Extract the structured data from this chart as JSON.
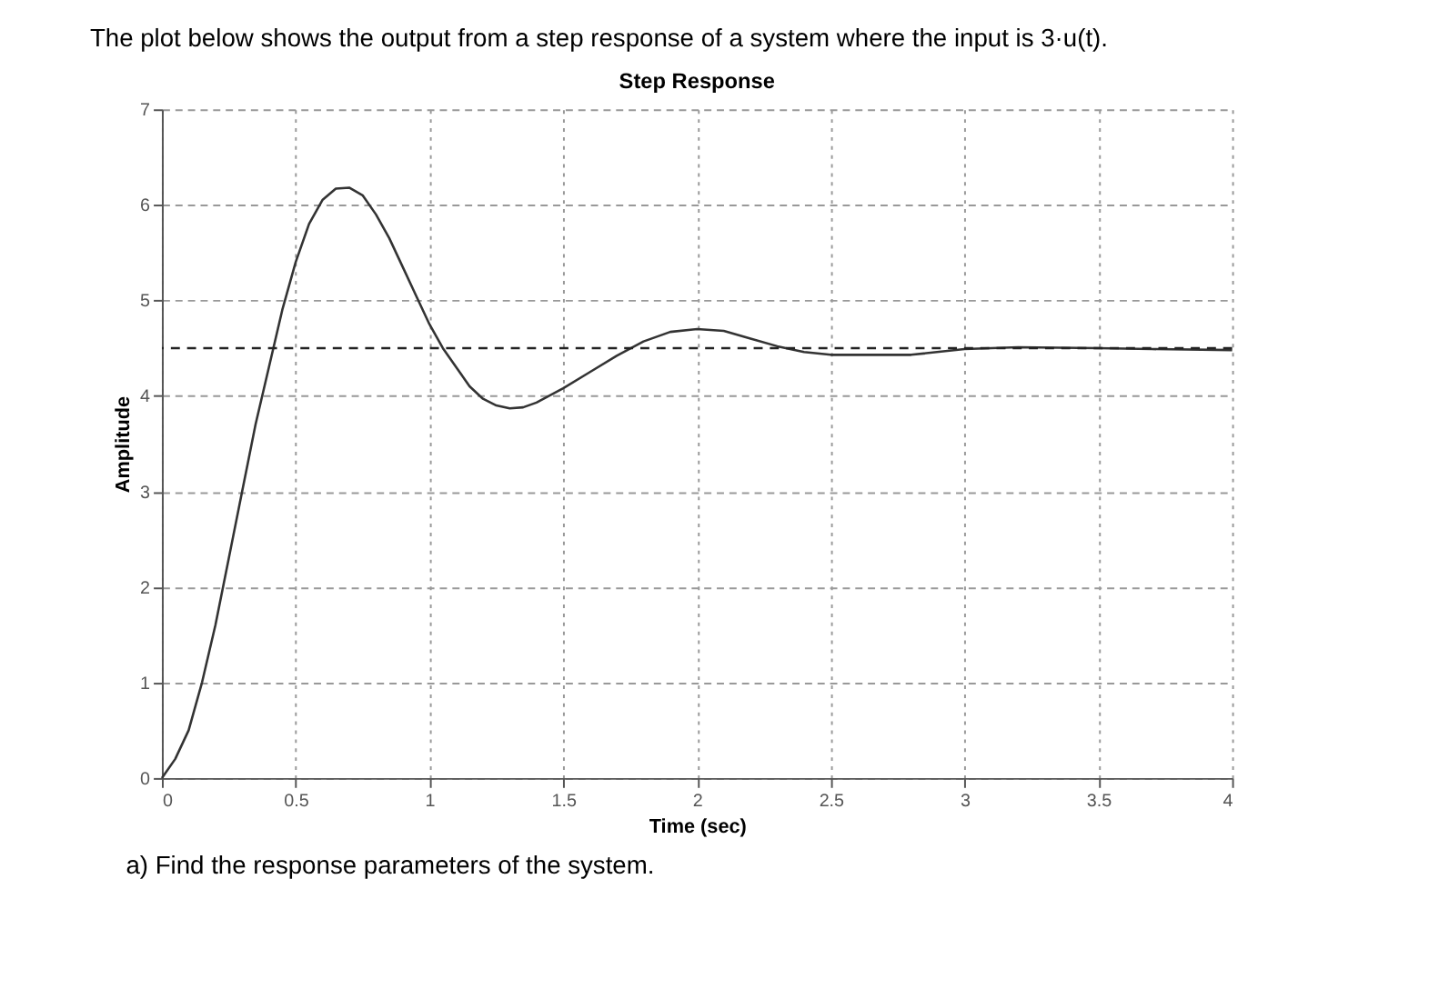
{
  "chart_data": {
    "type": "line",
    "title": "Step Response",
    "xlabel": "Time (sec)",
    "ylabel": "Amplitude",
    "annotations": [
      "The plot below shows the output from a step response of a system where the input is 3·u(t).",
      "a)  Find the response parameters of the system."
    ],
    "x": [
      0,
      0.05,
      0.1,
      0.15,
      0.2,
      0.25,
      0.3,
      0.35,
      0.4,
      0.45,
      0.5,
      0.55,
      0.6,
      0.65,
      0.7,
      0.75,
      0.8,
      0.85,
      0.9,
      0.95,
      1.0,
      1.05,
      1.1,
      1.15,
      1.2,
      1.25,
      1.3,
      1.35,
      1.4,
      1.5,
      1.6,
      1.7,
      1.8,
      1.9,
      2.0,
      2.1,
      2.2,
      2.3,
      2.4,
      2.5,
      2.6,
      2.8,
      3.0,
      3.2,
      3.5,
      3.7,
      4.0
    ],
    "series": [
      {
        "color": "#333333",
        "values": [
          0,
          0.2,
          0.5,
          1.0,
          1.6,
          2.3,
          3.0,
          3.7,
          4.3,
          4.9,
          5.4,
          5.8,
          6.05,
          6.17,
          6.18,
          6.1,
          5.9,
          5.65,
          5.35,
          5.05,
          4.75,
          4.5,
          4.3,
          4.1,
          3.97,
          3.9,
          3.87,
          3.88,
          3.93,
          4.08,
          4.25,
          4.42,
          4.57,
          4.67,
          4.7,
          4.68,
          4.6,
          4.52,
          4.46,
          4.43,
          4.43,
          4.43,
          4.49,
          4.51,
          4.5,
          4.49,
          4.48
        ]
      }
    ],
    "line_style": "solid",
    "ref_lines": [
      {
        "axis": "y",
        "value": 4.5,
        "color": "#222222",
        "line_style": "dashed"
      }
    ],
    "xlim": [
      0,
      4
    ],
    "ylim": [
      0,
      7
    ],
    "xticks": [
      0,
      0.5,
      1,
      1.5,
      2,
      2.5,
      3,
      3.5,
      4
    ],
    "yticks": [
      0,
      1,
      2,
      3,
      4,
      5,
      6,
      7
    ],
    "grid": true
  }
}
